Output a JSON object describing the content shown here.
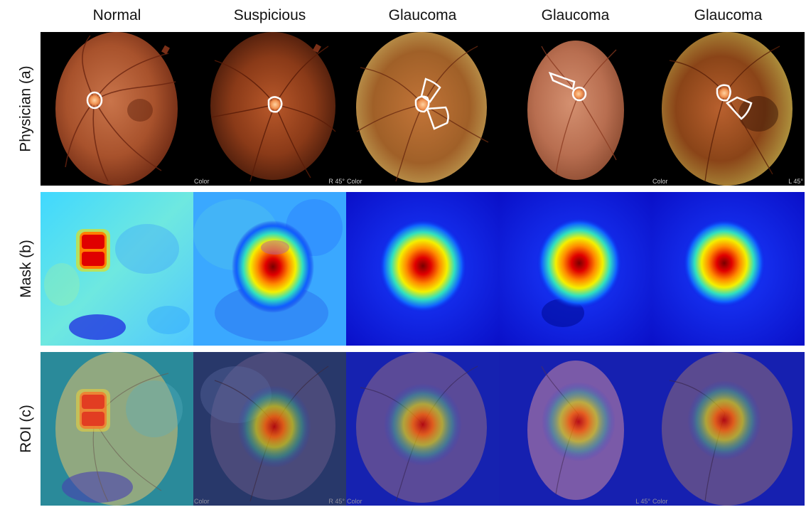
{
  "columns": [
    "Normal",
    "Suspicious",
    "Glaucoma",
    "Glaucoma",
    "Glaucoma"
  ],
  "rows": [
    "Physician (a)",
    "Mask (b)",
    "ROI (c)"
  ],
  "captions": {
    "color": "Color",
    "right_eye": "R  45°",
    "left_eye": "L  45°"
  },
  "colors": {
    "background": "#000000",
    "fundus_orange": "#b55a2c",
    "annotation": "#ffffff",
    "heat_low": "#0018d6",
    "heat_high": "#d40000"
  }
}
